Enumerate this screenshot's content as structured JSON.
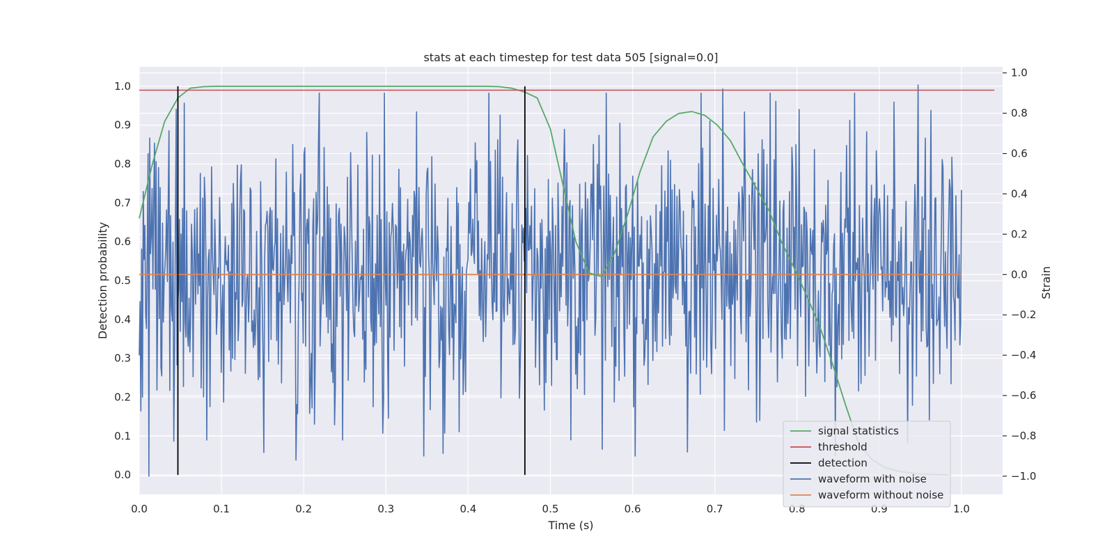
{
  "chart_data": {
    "type": "line",
    "title": "stats at each timestep for test data 505 [signal=0.0]",
    "xlabel": "Time (s)",
    "ylabel": "Detection probability",
    "y2label": "Strain",
    "xlim": [
      0.0,
      1.05
    ],
    "ylim": [
      -0.05,
      1.05
    ],
    "y2lim": [
      -1.09,
      1.03
    ],
    "xticks": [
      "0.0",
      "0.1",
      "0.2",
      "0.3",
      "0.4",
      "0.5",
      "0.6",
      "0.7",
      "0.8",
      "0.9",
      "1.0"
    ],
    "yticks": [
      "0.0",
      "0.1",
      "0.2",
      "0.3",
      "0.4",
      "0.5",
      "0.6",
      "0.7",
      "0.8",
      "0.9",
      "1.0"
    ],
    "y2ticks": [
      "−1.0",
      "−0.8",
      "−0.6",
      "−0.4",
      "−0.2",
      "0.0",
      "0.2",
      "0.4",
      "0.6",
      "0.8",
      "1.0"
    ],
    "grid": true,
    "legend_position": "lower-right",
    "colors": {
      "background": "#eaeaf2",
      "grid": "#ffffff",
      "signal": "#55a868",
      "threshold": "#c44e52",
      "detection": "#000000",
      "waveform_noise": "#4c72b0",
      "waveform_clean": "#dd8452"
    },
    "series": [
      {
        "name": "signal statistics",
        "axis": "left",
        "x": [
          0.0,
          0.016,
          0.031,
          0.047,
          0.062,
          0.078,
          0.094,
          0.109,
          0.125,
          0.2,
          0.3,
          0.4,
          0.42,
          0.438,
          0.453,
          0.469,
          0.484,
          0.5,
          0.516,
          0.531,
          0.547,
          0.562,
          0.578,
          0.594,
          0.609,
          0.625,
          0.641,
          0.656,
          0.672,
          0.688,
          0.703,
          0.719,
          0.734,
          0.75,
          0.766,
          0.781,
          0.797,
          0.812,
          0.828,
          0.844,
          0.859,
          0.875,
          0.891,
          0.906,
          0.922,
          0.938,
          0.953,
          0.969,
          0.984
        ],
        "y": [
          0.66,
          0.8,
          0.91,
          0.97,
          0.995,
          0.999,
          1.0,
          1.0,
          1.0,
          1.0,
          1.0,
          1.0,
          1.0,
          0.999,
          0.995,
          0.985,
          0.97,
          0.89,
          0.74,
          0.6,
          0.52,
          0.51,
          0.57,
          0.67,
          0.78,
          0.87,
          0.91,
          0.93,
          0.935,
          0.925,
          0.9,
          0.86,
          0.8,
          0.74,
          0.68,
          0.6,
          0.53,
          0.46,
          0.38,
          0.28,
          0.18,
          0.08,
          0.04,
          0.02,
          0.01,
          0.005,
          0.002,
          0.001,
          0.0
        ]
      },
      {
        "name": "threshold",
        "axis": "left",
        "x": [
          0.0,
          1.04
        ],
        "y": [
          0.99,
          0.99
        ]
      },
      {
        "name": "detection",
        "axis": "left",
        "x_lines": [
          0.047,
          0.469
        ],
        "y_range": [
          0.0,
          1.0
        ]
      },
      {
        "name": "waveform with noise",
        "axis": "right",
        "x_range": [
          0.0,
          1.0
        ],
        "n_points": 1024,
        "y_extent": [
          -1.0,
          1.0
        ],
        "notable_values": [
          {
            "x": 0.012,
            "y": -1.0
          },
          {
            "x": 0.055,
            "y": 0.85
          },
          {
            "x": 0.191,
            "y": -0.92
          },
          {
            "x": 0.525,
            "y": -0.82
          },
          {
            "x": 0.71,
            "y": 0.92
          },
          {
            "x": 0.947,
            "y": 0.94
          }
        ]
      },
      {
        "name": "waveform without noise",
        "axis": "right",
        "x": [
          0.0,
          1.0
        ],
        "y": [
          0.0,
          0.0
        ]
      }
    ]
  }
}
